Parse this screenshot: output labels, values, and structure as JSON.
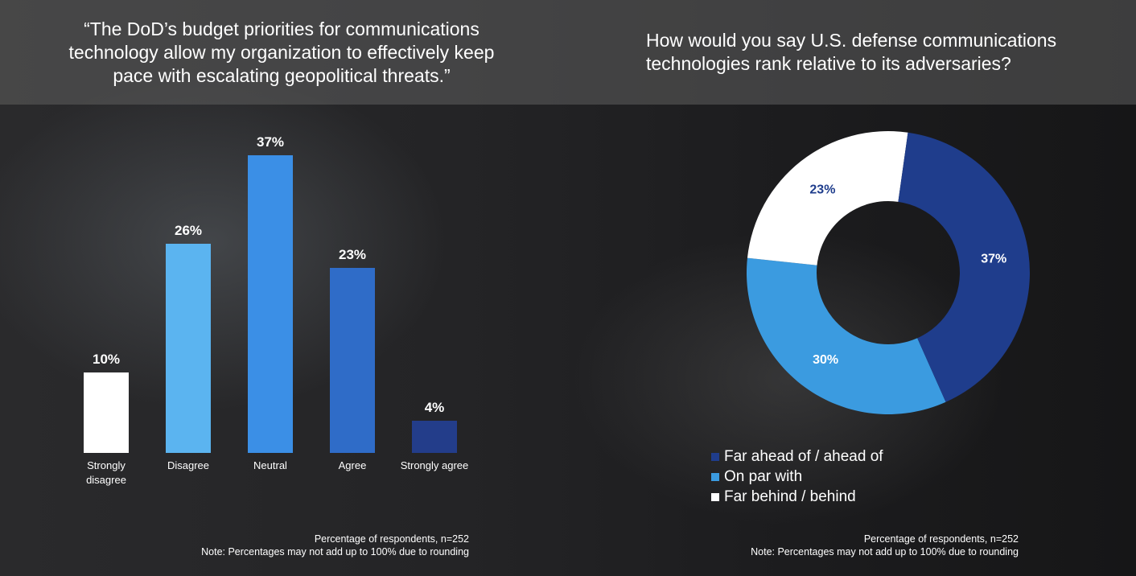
{
  "colors": {
    "white": "#ffffff",
    "light_blue": "#5bb4f0",
    "mid_blue": "#3b8fe6",
    "blue": "#2f6cc8",
    "dark_blue": "#233d8a",
    "navy": "#1f3d8c",
    "sky": "#3b9be0"
  },
  "chart_data": [
    {
      "type": "bar",
      "title": "“The DoD’s budget priorities for communications technology allow my organization to effectively keep pace with escalating geopolitical threats.”",
      "categories": [
        "Strongly disagree",
        "Disagree",
        "Neutral",
        "Agree",
        "Strongly agree"
      ],
      "category_lines": [
        [
          "Strongly",
          "disagree"
        ],
        [
          "Disagree"
        ],
        [
          "Neutral"
        ],
        [
          "Agree"
        ],
        [
          "Strongly agree"
        ]
      ],
      "values": [
        10,
        26,
        37,
        23,
        4
      ],
      "data_labels": [
        "10%",
        "26%",
        "37%",
        "23%",
        "4%"
      ],
      "bar_colors": [
        "#ffffff",
        "#5bb4f0",
        "#3b8fe6",
        "#2f6cc8",
        "#233d8a"
      ],
      "unit": "%",
      "ylim": [
        0,
        37
      ],
      "grid": false,
      "notes": [
        "Percentage of respondents, n=252",
        "Note: Percentages may not add up to 100% due to rounding"
      ]
    },
    {
      "type": "pie",
      "donut": true,
      "title": "How would you say U.S. defense communications technologies rank relative to its adversaries?",
      "slices": [
        {
          "label": "Far ahead of / ahead of",
          "value": 37,
          "data_label": "37%",
          "color": "#1f3d8c",
          "text_color": "#ffffff"
        },
        {
          "label": "On par with",
          "value": 30,
          "data_label": "30%",
          "color": "#3b9be0",
          "text_color": "#ffffff"
        },
        {
          "label": "Far behind / behind",
          "value": 23,
          "data_label": "23%",
          "color": "#ffffff",
          "text_color": "#1f3d8c"
        }
      ],
      "legend_position": "bottom-left",
      "notes": [
        "Percentage of respondents, n=252",
        "Note: Percentages may not add up to 100% due to rounding"
      ]
    }
  ]
}
